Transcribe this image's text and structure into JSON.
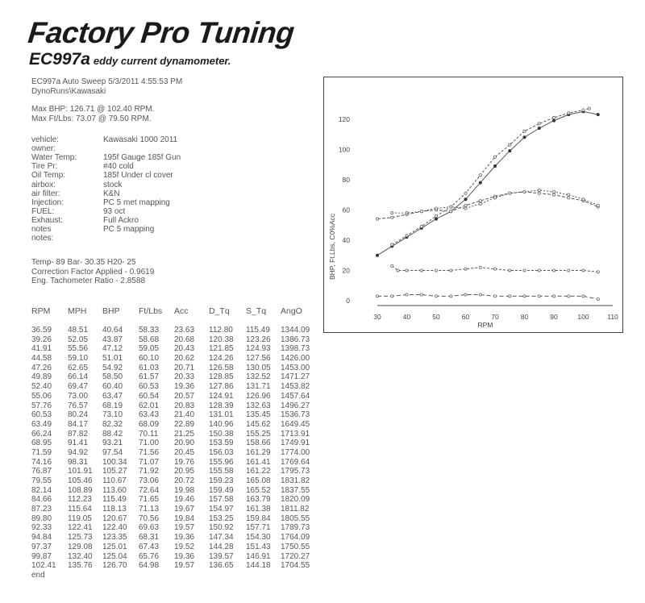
{
  "header": {
    "brand": "Factory Pro Tuning",
    "model": "EC997a",
    "description": "eddy current dynamometer."
  },
  "run": {
    "line1": "EC997a Auto Sweep   5/3/2011  4:55:53 PM",
    "line2": "DynoRuns\\Kawasaki",
    "max_bhp": "Max BHP:  126.71  @  102.40 RPM.",
    "max_ftlbs": "Max Ft/Lbs:  73.07  @  79.50 RPM."
  },
  "vehicle_info": [
    {
      "label": "vehicle:",
      "value": "Kawasaki   1000          2011"
    },
    {
      "label": "owner:",
      "value": ""
    },
    {
      "label": "Water Temp:",
      "value": "195f Gauge  185f Gun"
    },
    {
      "label": "Tire Pr:",
      "value": "#40 cold"
    },
    {
      "label": "Oil Temp:",
      "value": "               185f Under cl cover"
    },
    {
      "label": "airbox:",
      "value": "stock"
    },
    {
      "label": "air filter:",
      "value": "K&N"
    },
    {
      "label": "Injection:",
      "value": "PC 5 met mapping"
    },
    {
      "label": "FUEL:",
      "value": "93 oct"
    },
    {
      "label": "Exhaust:",
      "value": "Full Ackro"
    },
    {
      "label": "notes",
      "value": "PC 5 mapping"
    },
    {
      "label": "notes:",
      "value": ""
    }
  ],
  "conditions": {
    "line1": "Temp- 89  Bar- 30.35  H20- 25",
    "line2": "Correction Factor Applied - 0.9619",
    "line3": "Eng. Tachometer Ratio - 2.8588"
  },
  "table": {
    "headers": [
      "RPM",
      "MPH",
      "BHP",
      "Ft/Lbs",
      "Acc",
      "D_Tq",
      "S_Tq",
      "AngO"
    ],
    "rows": [
      [
        "36.59",
        "48.51",
        "40.64",
        "58.33",
        "23.63",
        "112.80",
        "115.49",
        "1344.09"
      ],
      [
        "39.26",
        "52.05",
        "43.87",
        "58.68",
        "20.68",
        "120.38",
        "123.26",
        "1386.73"
      ],
      [
        "41.91",
        "55.56",
        "47.12",
        "59.05",
        "20.43",
        "121.85",
        "124.93",
        "1398.73"
      ],
      [
        "44.58",
        "59.10",
        "51.01",
        "60.10",
        "20.62",
        "124.26",
        "127.56",
        "1426.00"
      ],
      [
        "47.26",
        "62.65",
        "54.92",
        "61.03",
        "20.71",
        "126.58",
        "130.05",
        "1453.00"
      ],
      [
        "49.89",
        "66.14",
        "58.50",
        "61.57",
        "20.33",
        "128.85",
        "132.52",
        "1471.27"
      ],
      [
        "52.40",
        "69.47",
        "60.40",
        "60.53",
        "19.36",
        "127.86",
        "131.71",
        "1453.82"
      ],
      [
        "55.06",
        "73.00",
        "63.47",
        "60.54",
        "20.57",
        "124.91",
        "126.96",
        "1457.64"
      ],
      [
        "57.76",
        "76.57",
        "68.19",
        "62.01",
        "20.83",
        "128.39",
        "132.63",
        "1496.27"
      ],
      [
        "60.53",
        "80.24",
        "73.10",
        "63.43",
        "21.40",
        "131.01",
        "135.45",
        "1536.73"
      ],
      [
        "63.49",
        "84.17",
        "82.32",
        "68.09",
        "22.89",
        "140.96",
        "145.62",
        "1649.45"
      ],
      [
        "66.24",
        "87.82",
        "88.42",
        "70.11",
        "21.25",
        "150.38",
        "155.25",
        "1713.91"
      ],
      [
        "68.95",
        "91.41",
        "93.21",
        "71.00",
        "20.90",
        "153.59",
        "158.66",
        "1749.91"
      ],
      [
        "71.59",
        "94.92",
        "97.54",
        "71.56",
        "20.45",
        "156.03",
        "161.29",
        "1774.00"
      ],
      [
        "74.16",
        "98.31",
        "100.34",
        "71.07",
        "19.76",
        "155.96",
        "161.41",
        "1769.64"
      ],
      [
        "76.87",
        "101.91",
        "105.27",
        "71.92",
        "20.95",
        "155.58",
        "161.22",
        "1795.73"
      ],
      [
        "79.55",
        "105.46",
        "110.67",
        "73.06",
        "20.72",
        "159.23",
        "165.08",
        "1831.82"
      ],
      [
        "82.14",
        "108.89",
        "113.60",
        "72.64",
        "19.98",
        "159.49",
        "165.52",
        "1837.55"
      ],
      [
        "84.66",
        "112.23",
        "115.49",
        "71.65",
        "19.46",
        "157.58",
        "163.79",
        "1820.09"
      ],
      [
        "87.23",
        "115.64",
        "118.13",
        "71.13",
        "19.67",
        "154.97",
        "161.38",
        "1811.82"
      ],
      [
        "89.80",
        "119.05",
        "120.67",
        "70.56",
        "19.84",
        "153.25",
        "159.84",
        "1805.55"
      ],
      [
        "92.33",
        "122.41",
        "122.40",
        "69.63",
        "19.57",
        "150.92",
        "157.71",
        "1789.73"
      ],
      [
        "94.84",
        "125.73",
        "123.35",
        "68.31",
        "19.36",
        "147.34",
        "154.30",
        "1764.09"
      ],
      [
        "97.37",
        "129.08",
        "125.01",
        "67.43",
        "19.52",
        "144.28",
        "151.43",
        "1750.55"
      ],
      [
        "99.87",
        "132.40",
        "125.04",
        "65.76",
        "19.36",
        "139.57",
        "146.91",
        "1720.27"
      ],
      [
        "102.41",
        "135.76",
        "126.70",
        "64.98",
        "19.57",
        "136.65",
        "144.18",
        "1704.55"
      ]
    ],
    "end_label": "end"
  },
  "chart_data": {
    "type": "line",
    "xlabel": "RPM",
    "ylabel": "BHP, Ft.Lbs, C0%Acc",
    "xlim": [
      30,
      110
    ],
    "ylim": [
      0,
      130
    ],
    "x_ticks": [
      30,
      40,
      50,
      60,
      70,
      80,
      90,
      100,
      110
    ],
    "y_ticks": [
      0,
      20,
      40,
      60,
      80,
      100,
      120
    ],
    "grid": false,
    "series": [
      {
        "x": [
          30,
          35,
          40,
          45,
          50,
          55,
          60,
          65,
          70,
          75,
          80,
          85,
          90,
          95,
          100,
          105
        ],
        "y": [
          30,
          36,
          42,
          48,
          54,
          59,
          67,
          78,
          89,
          99,
          108,
          114,
          119,
          123,
          125,
          123
        ]
      },
      {
        "x": [
          35,
          40,
          45,
          50,
          55,
          60,
          65,
          70,
          75,
          80,
          85,
          90,
          95,
          100,
          102
        ],
        "y": [
          37,
          43,
          49,
          56,
          62,
          71,
          83,
          95,
          103,
          112,
          117,
          121,
          124,
          126,
          127
        ]
      },
      {
        "x": [
          30,
          35,
          40,
          45,
          50,
          55,
          60,
          65,
          70,
          75,
          80,
          85,
          90,
          95,
          100,
          105
        ],
        "y": [
          54,
          55,
          57,
          59,
          60,
          59,
          63,
          66,
          69,
          71,
          72,
          71,
          70,
          68,
          66,
          62
        ]
      },
      {
        "x": [
          35,
          40,
          45,
          50,
          55,
          60,
          65,
          70,
          75,
          80,
          85,
          90,
          95,
          100,
          105
        ],
        "y": [
          58,
          58,
          59,
          61,
          62,
          61,
          64,
          68,
          71,
          72,
          73,
          72,
          70,
          67,
          63
        ]
      },
      {
        "x": [
          35,
          37,
          40,
          45,
          50,
          55,
          60,
          65,
          70,
          75,
          80,
          85,
          90,
          95,
          100,
          105
        ],
        "y": [
          23,
          20,
          20,
          20,
          20,
          20,
          21,
          22,
          21,
          20,
          20,
          20,
          20,
          20,
          20,
          19
        ]
      },
      {
        "x": [
          30,
          35,
          40,
          45,
          50,
          55,
          60,
          65,
          70,
          75,
          80,
          85,
          90,
          95,
          100,
          105
        ],
        "y": [
          3,
          3,
          4,
          4,
          3,
          3,
          4,
          4,
          3,
          3,
          3,
          3,
          3,
          3,
          3,
          1
        ]
      }
    ]
  },
  "style": {
    "line_color": "#555555",
    "axis_color": "#444444"
  }
}
